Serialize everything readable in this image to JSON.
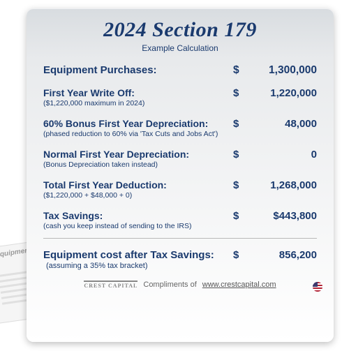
{
  "title": "2024 Section 179",
  "subtitle": "Example  Calculation",
  "rows": [
    {
      "label": "Equipment Purchases:",
      "sublabel": "",
      "currency": "$",
      "amount": "1,300,000",
      "highlight": true
    },
    {
      "label": "First Year Write Off:",
      "sublabel": "($1,220,000  maximum in 2024)",
      "currency": "$",
      "amount": "1,220,000"
    },
    {
      "label": "60% Bonus First Year Depreciation:",
      "sublabel": "(phased reduction to 60% via 'Tax Cuts and Jobs Act')",
      "currency": "$",
      "amount": "48,000"
    },
    {
      "label": "Normal First Year Depreciation:",
      "sublabel": "(Bonus Depreciation taken instead)",
      "currency": "$",
      "amount": "0"
    },
    {
      "label": "Total First Year Deduction:",
      "sublabel": "($1,220,000 + $48,000 + 0)",
      "currency": "$",
      "amount": "1,268,000"
    },
    {
      "label": "Tax Savings:",
      "sublabel": "(cash you keep instead of sending to the IRS)",
      "currency": "$",
      "amount": "$443,800"
    }
  ],
  "final": {
    "label": "Equipment cost after Tax Savings:",
    "sublabel": "(assuming a 35% tax bracket)",
    "currency": "$",
    "amount": "856,200"
  },
  "footer": {
    "logo": "CREST CAPITAL",
    "text": "Compliments of",
    "link": "www.crestcapital.com"
  },
  "colors": {
    "primary": "#1a3a6e",
    "card_top": "#d8dce0",
    "card_bottom": "#ffffff",
    "divider": "#b8b8b8"
  }
}
